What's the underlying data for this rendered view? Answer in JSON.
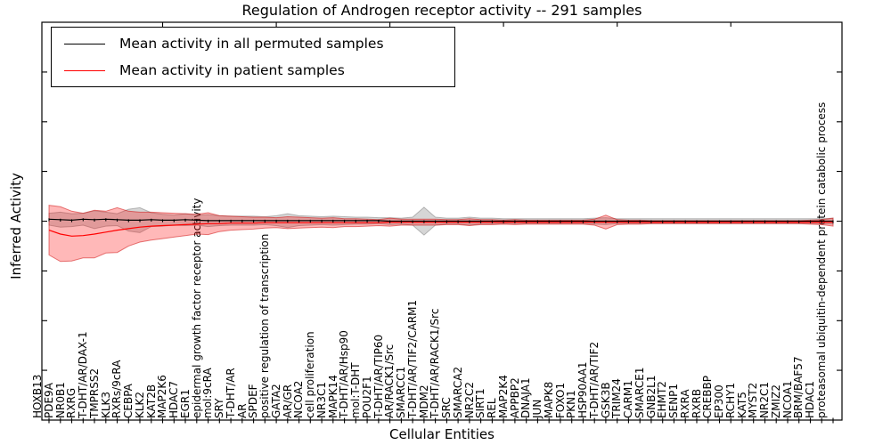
{
  "figure": {
    "title": "Regulation of Androgen receptor activity -- 291 samples",
    "xlabel": "Cellular Entities",
    "ylabel": "Inferred Activity"
  },
  "legend": {
    "items": [
      {
        "label": "Mean activity in all permuted samples",
        "color": "#000000"
      },
      {
        "label": "Mean activity in patient samples",
        "color": "#ff0000"
      }
    ]
  },
  "chart_data": {
    "type": "line",
    "title": "Regulation of Androgen receptor activity -- 291 samples",
    "xlabel": "Cellular Entities",
    "ylabel": "Inferred Activity",
    "ylim": [
      -4,
      4
    ],
    "yticks": [
      -4,
      -3,
      -2,
      -1,
      0,
      1,
      2,
      3,
      4
    ],
    "grid": false,
    "legend_position": "upper left",
    "categories": [
      "HOXB13",
      "PDE9A",
      "NR0B1",
      "RXRG",
      "T-DHT/AR/DAX-1",
      "TMPRSS2",
      "KLK3",
      "RXRs/9cRA",
      "CEBPA",
      "KLK2",
      "KAT2B",
      "MAP2K6",
      "HDAC7",
      "EGR1",
      "epidermal growth factor receptor activity",
      "mol:9cRA",
      "SRY",
      "T-DHT/AR",
      "AR",
      "SPDEF",
      "positive regulation of transcription",
      "GATA2",
      "AR/GR",
      "NCOA2",
      "cell proliferation",
      "NR3C1",
      "MAPK14",
      "T-DHT/AR/Hsp90",
      "mol:T-DHT",
      "POU2F1",
      "T-DHT/AR/TIP60",
      "AR/RACK1/Src",
      "SMARCC1",
      "T-DHT/AR/TIF2/CARM1",
      "MDM2",
      "T-DHT/AR/RACK1/Src",
      "SRC",
      "SMARCA2",
      "NR2C2",
      "SIRT1",
      "REL",
      "MAP2K4",
      "APPBP2",
      "DNAJA1",
      "JUN",
      "MAPK8",
      "FOXO1",
      "PKN1",
      "HSP90AA1",
      "T-DHT/AR/TIF2",
      "GSK3B",
      "TRIM24",
      "CARM1",
      "SMARCE1",
      "GNB2L1",
      "EHMT2",
      "SENP1",
      "RXRA",
      "RXRB",
      "CREBBP",
      "EP300",
      "RCHY1",
      "KAT5",
      "MYST2",
      "NR2C1",
      "ZMIZ2",
      "NCOA1",
      "BRM/BAF57",
      "HDAC1",
      "proteasomal ubiquitin-dependent protein catabolic process"
    ],
    "series": [
      {
        "name": "Mean activity in all permuted samples",
        "color": "#000000",
        "band_fill": "rgba(128,128,128,0.32)",
        "band_edge": "rgba(110,110,110,0.45)",
        "values": [
          0.04,
          0.03,
          0.02,
          0.04,
          0.03,
          0.04,
          0.03,
          0.02,
          0.02,
          0.03,
          0.02,
          0.02,
          0.03,
          0.02,
          0.01,
          0.01,
          0.01,
          0.01,
          0.01,
          0.01,
          0.01,
          0.01,
          0.01,
          0.01,
          0.01,
          0.01,
          0.01,
          0.01,
          0.01,
          0.01,
          0,
          0,
          0,
          0,
          0,
          0,
          0,
          0,
          0,
          0,
          0,
          0,
          0,
          0,
          0,
          0,
          0,
          0,
          0,
          0,
          0,
          0,
          0,
          0,
          0,
          0,
          0,
          0,
          0,
          0,
          0,
          0,
          0,
          0,
          0,
          0,
          0,
          0,
          0,
          0
        ],
        "band_halfwidth": [
          0.12,
          0.15,
          0.13,
          0.12,
          0.18,
          0.14,
          0.12,
          0.22,
          0.25,
          0.14,
          0.12,
          0.1,
          0.12,
          0.1,
          0.12,
          0.1,
          0.09,
          0.09,
          0.09,
          0.08,
          0.1,
          0.14,
          0.1,
          0.09,
          0.08,
          0.09,
          0.08,
          0.07,
          0.07,
          0.06,
          0.07,
          0.06,
          0.08,
          0.28,
          0.08,
          0.06,
          0.06,
          0.08,
          0.06,
          0.06,
          0.05,
          0.05,
          0.05,
          0.05,
          0.05,
          0.05,
          0.05,
          0.05,
          0.06,
          0.07,
          0.05,
          0.05,
          0.05,
          0.05,
          0.05,
          0.05,
          0.05,
          0.05,
          0.05,
          0.05,
          0.05,
          0.05,
          0.05,
          0.05,
          0.05,
          0.05,
          0.05,
          0.05,
          0.05,
          0.06
        ]
      },
      {
        "name": "Mean activity in patient samples",
        "color": "#ff0000",
        "band_fill": "rgba(255,0,0,0.28)",
        "band_edge": "rgba(205,0,0,0.5)",
        "values": [
          -0.18,
          -0.26,
          -0.3,
          -0.29,
          -0.26,
          -0.22,
          -0.18,
          -0.15,
          -0.12,
          -0.1,
          -0.09,
          -0.08,
          -0.07,
          -0.06,
          -0.05,
          -0.05,
          -0.04,
          -0.04,
          -0.04,
          -0.03,
          -0.03,
          -0.03,
          -0.03,
          -0.03,
          -0.03,
          -0.03,
          -0.03,
          -0.03,
          -0.03,
          -0.03,
          -0.02,
          -0.02,
          -0.02,
          -0.02,
          -0.02,
          -0.02,
          -0.02,
          -0.02,
          -0.02,
          -0.02,
          -0.02,
          -0.02,
          -0.02,
          -0.02,
          -0.02,
          -0.02,
          -0.02,
          -0.02,
          -0.02,
          -0.02,
          -0.02,
          -0.02,
          -0.02,
          -0.02,
          -0.02,
          -0.02,
          -0.02,
          -0.02,
          -0.02,
          -0.02,
          -0.02,
          -0.02,
          -0.02,
          -0.02,
          -0.02,
          -0.02,
          -0.02,
          -0.02,
          -0.02,
          -0.02
        ],
        "band_halfwidth": [
          0.5,
          0.55,
          0.5,
          0.45,
          0.48,
          0.42,
          0.45,
          0.35,
          0.3,
          0.28,
          0.26,
          0.24,
          0.22,
          0.2,
          0.22,
          0.16,
          0.14,
          0.13,
          0.12,
          0.11,
          0.1,
          0.12,
          0.11,
          0.1,
          0.09,
          0.1,
          0.08,
          0.08,
          0.07,
          0.06,
          0.08,
          0.06,
          0.06,
          0.06,
          0.06,
          0.05,
          0.05,
          0.07,
          0.05,
          0.05,
          0.04,
          0.05,
          0.04,
          0.04,
          0.04,
          0.04,
          0.04,
          0.04,
          0.06,
          0.14,
          0.05,
          0.04,
          0.04,
          0.03,
          0.03,
          0.03,
          0.03,
          0.03,
          0.03,
          0.03,
          0.03,
          0.03,
          0.03,
          0.03,
          0.03,
          0.03,
          0.03,
          0.04,
          0.05,
          0.08
        ]
      }
    ]
  }
}
